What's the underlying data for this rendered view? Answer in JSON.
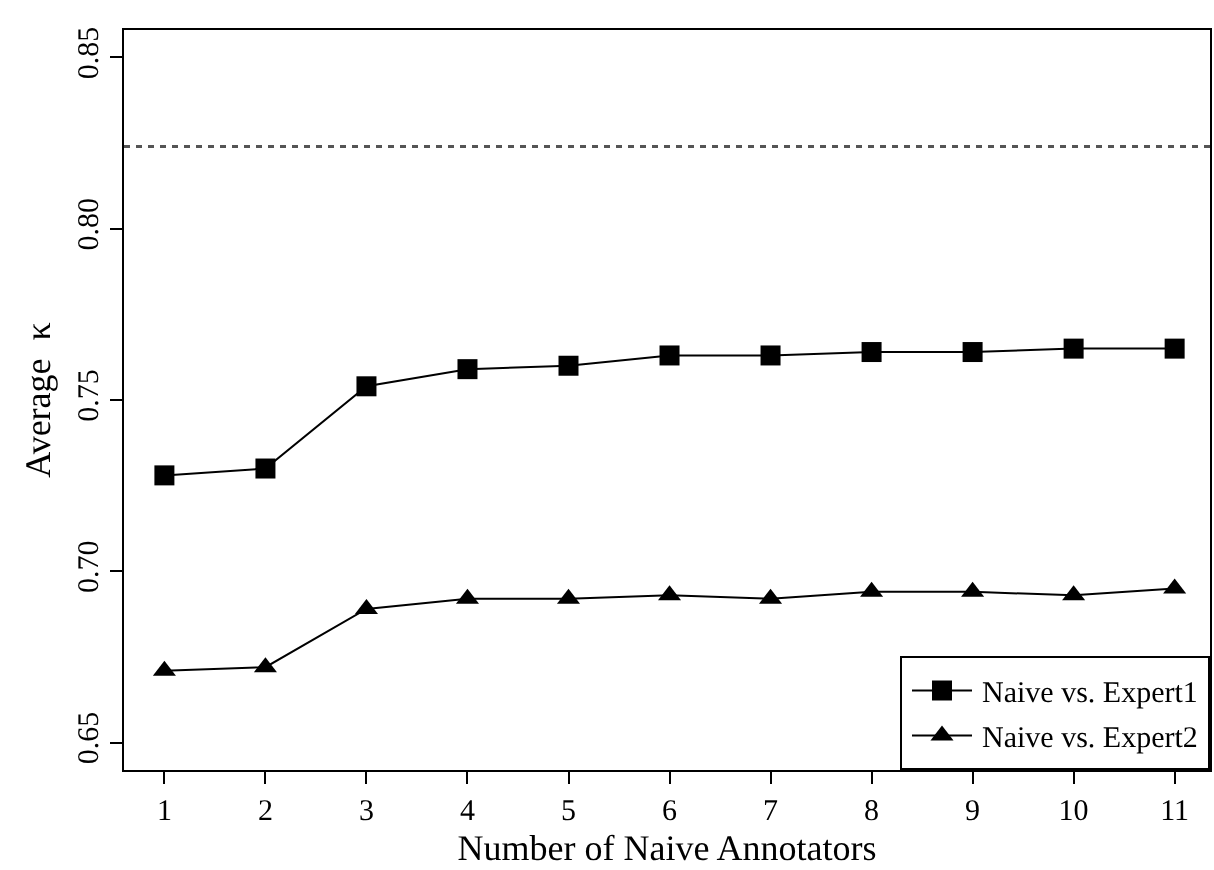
{
  "chart_data": {
    "type": "line",
    "xlabel": "Number of Naive Annotators",
    "ylabel": "Average  κ",
    "x": [
      1,
      2,
      3,
      4,
      5,
      6,
      7,
      8,
      9,
      10,
      11
    ],
    "series": [
      {
        "name": "Naive vs. Expert1",
        "color": "#000000",
        "marker": "square",
        "values": [
          0.728,
          0.73,
          0.754,
          0.759,
          0.76,
          0.763,
          0.763,
          0.764,
          0.764,
          0.765,
          0.765
        ]
      },
      {
        "name": "Naive vs. Expert2",
        "color": "#000000",
        "marker": "triangle",
        "values": [
          0.671,
          0.672,
          0.689,
          0.692,
          0.692,
          0.693,
          0.692,
          0.694,
          0.694,
          0.693,
          0.695
        ]
      }
    ],
    "xlim": [
      0.6,
      11.35
    ],
    "xticks": [
      1,
      2,
      3,
      4,
      5,
      6,
      7,
      8,
      9,
      10,
      11
    ],
    "ylim": [
      0.642,
      0.858
    ],
    "yticks": [
      0.65,
      {
        "value": 0.7,
        "label": "0.70"
      },
      0.75,
      {
        "value": 0.8,
        "label": "0.80"
      },
      0.85
    ],
    "ref_lines": [
      {
        "axis": "y",
        "value": 0.824,
        "color": "#555555",
        "line_style": "dotted"
      }
    ],
    "legend": "bottom right",
    "line_style": "solid"
  }
}
